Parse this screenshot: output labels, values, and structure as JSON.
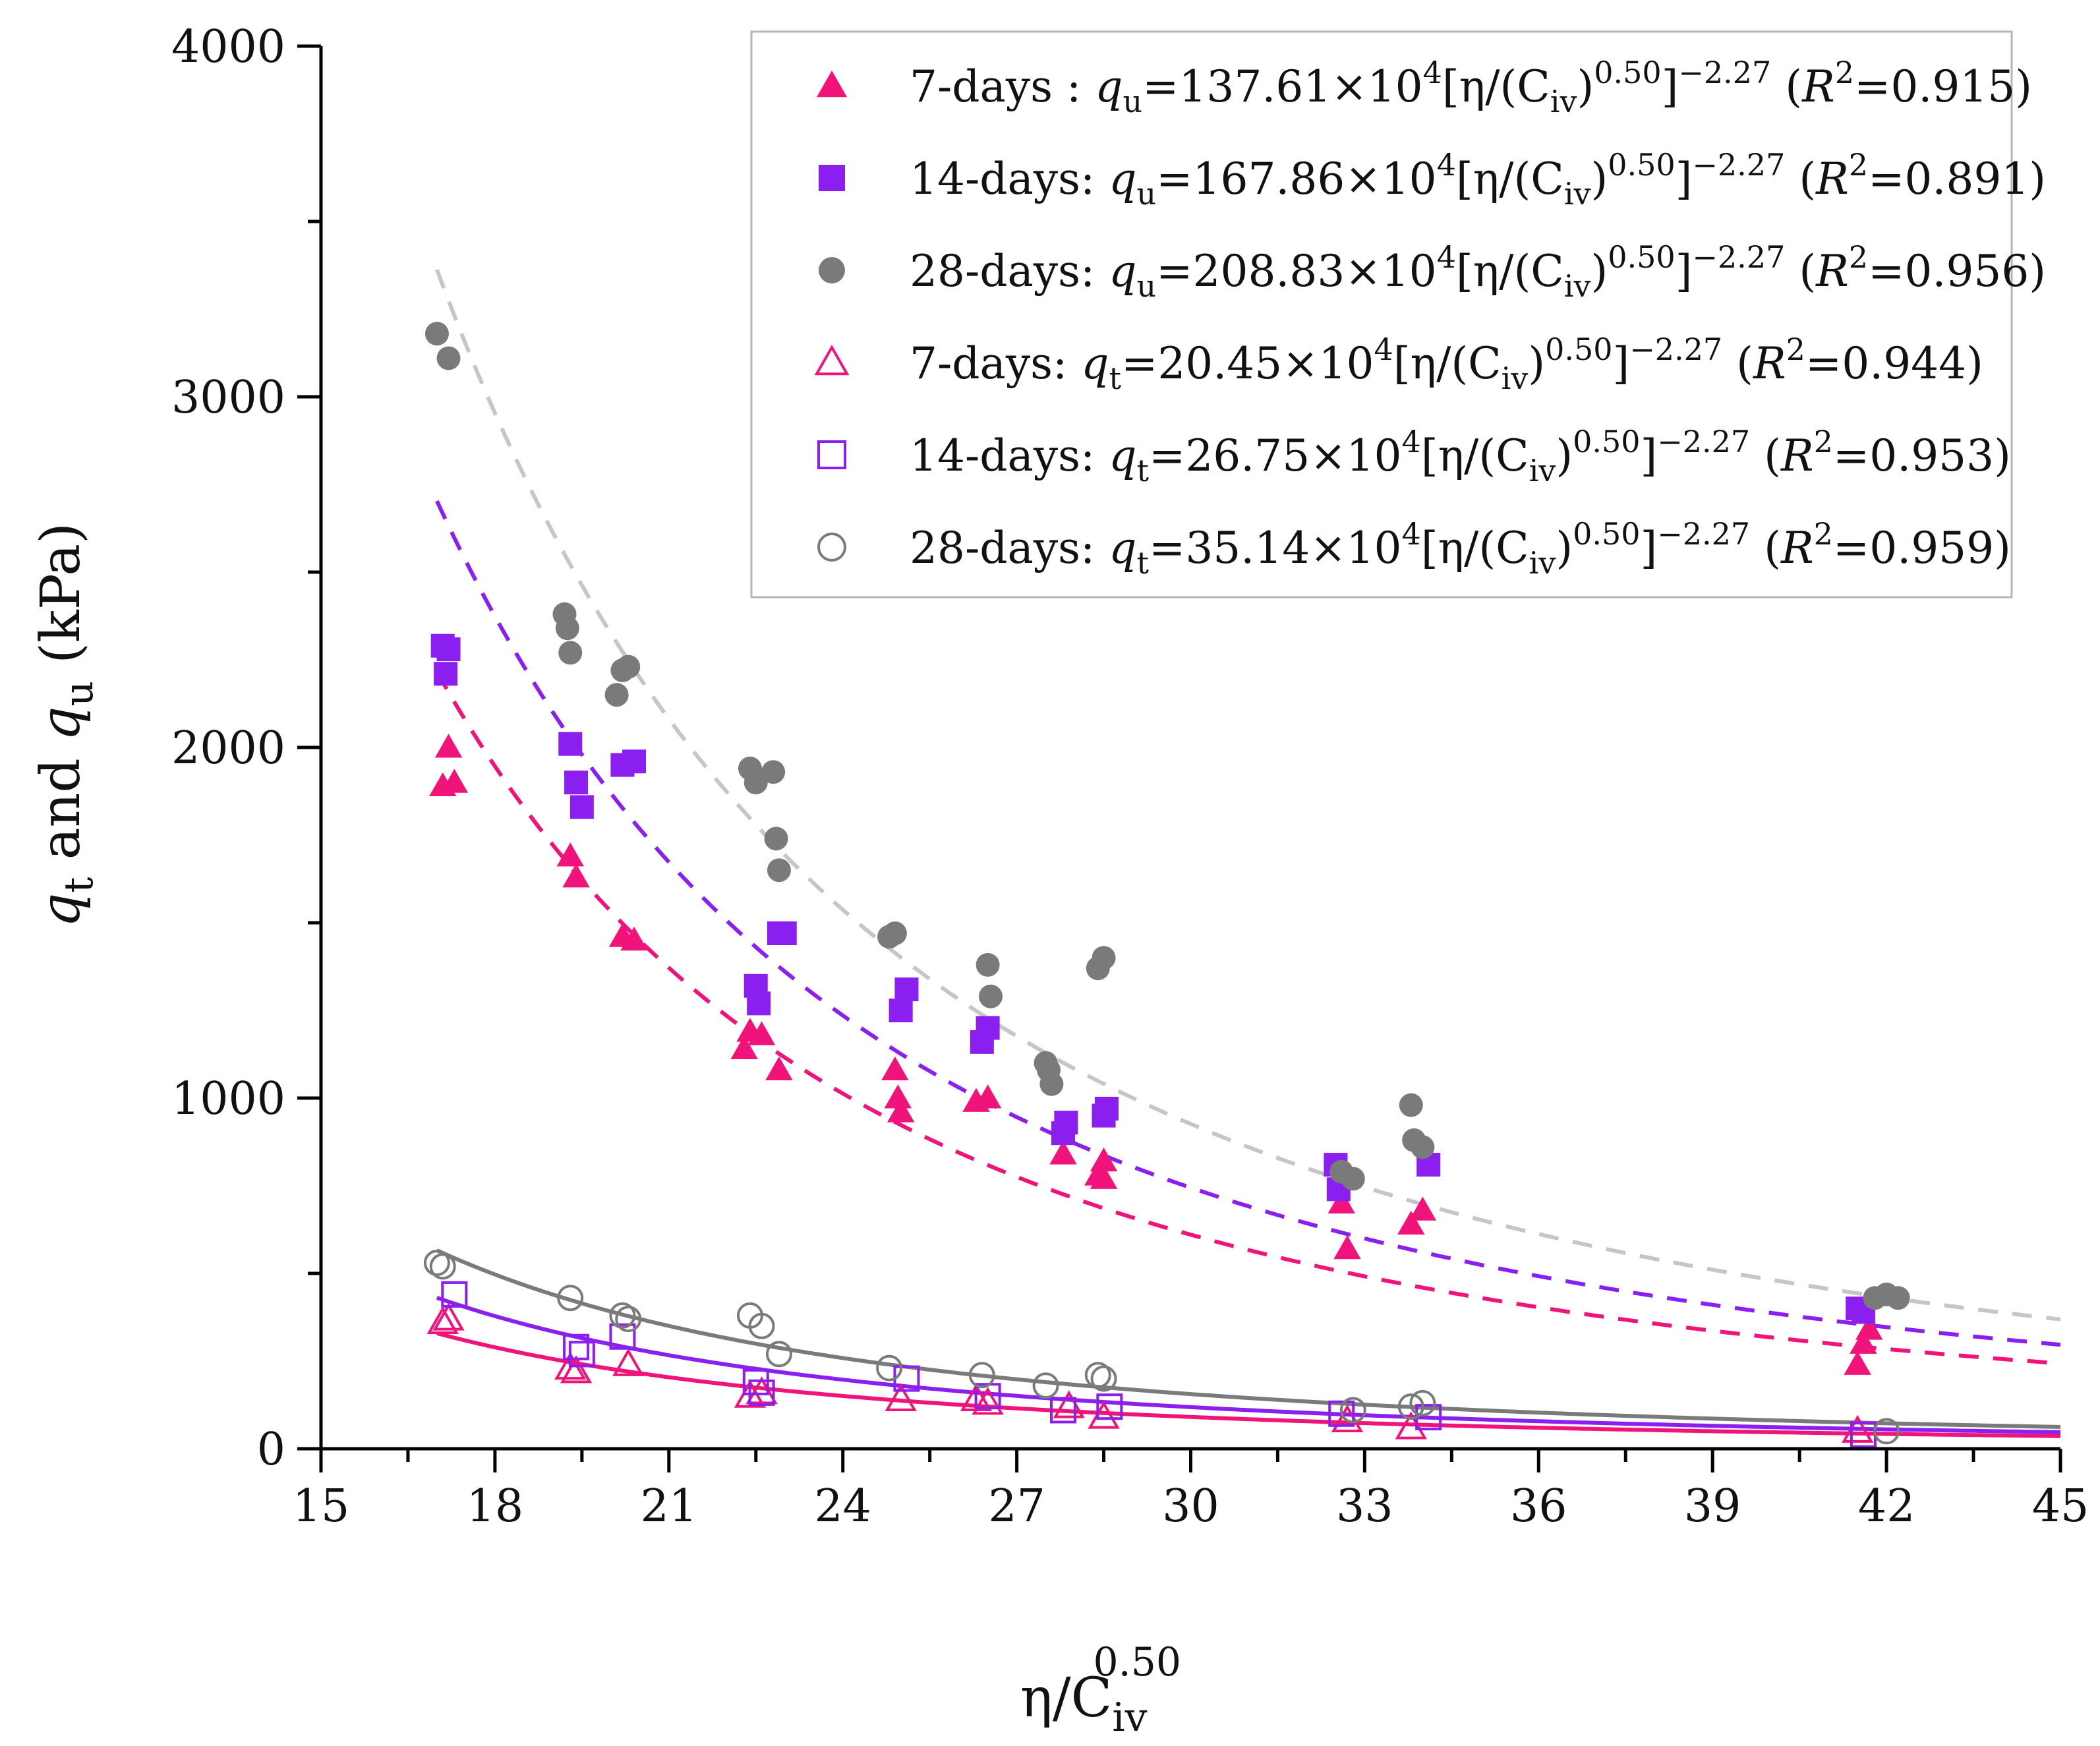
{
  "chart_data": {
    "type": "scatter",
    "xlabel": {
      "main": "η/C",
      "sub": "iv",
      "sup": "0.50"
    },
    "ylabel": {
      "q1": "q",
      "q1_sub": "t",
      "and": " and ",
      "q2": "q",
      "q2_sub": "u",
      "unit": " (kPa)"
    },
    "xlim": [
      15,
      45
    ],
    "ylim": [
      0,
      4000
    ],
    "x_ticks": [
      "15",
      "18",
      "21",
      "24",
      "27",
      "30",
      "33",
      "36",
      "39",
      "42",
      "45"
    ],
    "y_ticks": [
      "0",
      "1000",
      "2000",
      "3000",
      "4000"
    ],
    "legend_position": "top-right",
    "colors": {
      "pink": "#f0147a",
      "purple": "#8a1ff0",
      "gray": "#8c8c8c",
      "lightgray": "#c6c6c6",
      "darkgray": "#7a7a7a"
    },
    "series": [
      {
        "name": "7-days qu",
        "marker": "triangle",
        "filled": true,
        "color": "#f0147a",
        "legend": {
          "label": "7-days : ",
          "var": "q",
          "var_sub": "u",
          "eq": "=137.61×10",
          "exp": "4",
          "mid1": "[η/(C",
          "csub": "iv",
          "mid2": ")",
          "pow": "0.50",
          "mid3": "]",
          "pow2": "−2.27",
          "r2pre": " (",
          "R": "R",
          "Rsup": "2",
          "r2": "=0.915)"
        },
        "fit": {
          "coef": 1376100,
          "style": "dashed",
          "color": "#f0147a"
        },
        "points": [
          [
            17.1,
            1890
          ],
          [
            17.2,
            2000
          ],
          [
            17.3,
            1900
          ],
          [
            19.3,
            1690
          ],
          [
            19.4,
            1630
          ],
          [
            20.2,
            1460
          ],
          [
            20.4,
            1450
          ],
          [
            22.3,
            1140
          ],
          [
            22.4,
            1190
          ],
          [
            22.6,
            1180
          ],
          [
            22.9,
            1080
          ],
          [
            24.9,
            1080
          ],
          [
            24.95,
            1000
          ],
          [
            25.0,
            960
          ],
          [
            26.3,
            990
          ],
          [
            26.5,
            1000
          ],
          [
            27.8,
            840
          ],
          [
            28.4,
            780
          ],
          [
            28.5,
            820
          ],
          [
            28.5,
            770
          ],
          [
            32.6,
            700
          ],
          [
            32.7,
            570
          ],
          [
            33.8,
            640
          ],
          [
            34.0,
            680
          ],
          [
            41.5,
            240
          ],
          [
            41.6,
            300
          ],
          [
            41.7,
            340
          ]
        ]
      },
      {
        "name": "14-days qu",
        "marker": "square",
        "filled": true,
        "color": "#8a1ff0",
        "legend": {
          "label": "14-days: ",
          "var": "q",
          "var_sub": "u",
          "eq": "=167.86×10",
          "exp": "4",
          "mid1": "[η/(C",
          "csub": "iv",
          "mid2": ")",
          "pow": "0.50",
          "mid3": "]",
          "pow2": "−2.27",
          "r2pre": " (",
          "R": "R",
          "Rsup": "2",
          "r2": "=0.891)"
        },
        "fit": {
          "coef": 1678600,
          "style": "dashed",
          "color": "#8a1ff0"
        },
        "points": [
          [
            17.1,
            2290
          ],
          [
            17.15,
            2210
          ],
          [
            17.2,
            2280
          ],
          [
            19.3,
            2010
          ],
          [
            19.4,
            1900
          ],
          [
            19.5,
            1830
          ],
          [
            20.2,
            1950
          ],
          [
            20.4,
            1960
          ],
          [
            22.5,
            1320
          ],
          [
            22.55,
            1270
          ],
          [
            22.9,
            1470
          ],
          [
            23.0,
            1470
          ],
          [
            25.0,
            1250
          ],
          [
            25.1,
            1310
          ],
          [
            26.4,
            1160
          ],
          [
            26.5,
            1200
          ],
          [
            27.8,
            900
          ],
          [
            27.85,
            930
          ],
          [
            28.5,
            950
          ],
          [
            28.55,
            970
          ],
          [
            32.5,
            810
          ],
          [
            32.55,
            740
          ],
          [
            34.1,
            810
          ],
          [
            41.5,
            400
          ],
          [
            41.6,
            390
          ]
        ]
      },
      {
        "name": "28-days qu",
        "marker": "circle",
        "filled": true,
        "color": "#7a7a7a",
        "legend": {
          "label": "28-days: ",
          "var": "q",
          "var_sub": "u",
          "eq": "=208.83×10",
          "exp": "4",
          "mid1": "[η/(C",
          "csub": "iv",
          "mid2": ")",
          "pow": "0.50",
          "mid3": "]",
          "pow2": "−2.27",
          "r2pre": " (",
          "R": "R",
          "Rsup": "2",
          "r2": "=0.956)"
        },
        "fit": {
          "coef": 2088300,
          "style": "dashed",
          "color": "#c6c6c6"
        },
        "points": [
          [
            17.0,
            3180
          ],
          [
            17.2,
            3110
          ],
          [
            19.2,
            2380
          ],
          [
            19.25,
            2340
          ],
          [
            19.3,
            2270
          ],
          [
            20.1,
            2150
          ],
          [
            20.2,
            2220
          ],
          [
            20.3,
            2230
          ],
          [
            22.4,
            1940
          ],
          [
            22.5,
            1900
          ],
          [
            22.8,
            1930
          ],
          [
            22.85,
            1740
          ],
          [
            22.9,
            1650
          ],
          [
            24.8,
            1460
          ],
          [
            24.9,
            1470
          ],
          [
            26.5,
            1380
          ],
          [
            26.55,
            1290
          ],
          [
            27.5,
            1100
          ],
          [
            27.55,
            1080
          ],
          [
            27.6,
            1040
          ],
          [
            28.4,
            1370
          ],
          [
            28.5,
            1400
          ],
          [
            32.6,
            790
          ],
          [
            32.8,
            770
          ],
          [
            33.8,
            980
          ],
          [
            33.85,
            880
          ],
          [
            34.0,
            860
          ],
          [
            41.8,
            430
          ],
          [
            42.0,
            440
          ],
          [
            42.2,
            430
          ]
        ]
      },
      {
        "name": "7-days qt",
        "marker": "triangle",
        "filled": false,
        "color": "#f0147a",
        "legend": {
          "label": "7-days: ",
          "var": "q",
          "var_sub": "t",
          "eq": "=20.45×10",
          "exp": "4",
          "mid1": "[η/(C",
          "csub": "iv",
          "mid2": ")",
          "pow": "0.50",
          "mid3": "]",
          "pow2": "−2.27",
          "r2pre": " (",
          "R": "R",
          "Rsup": "2",
          "r2": "=0.944)"
        },
        "fit": {
          "coef": 204500,
          "style": "solid",
          "color": "#f0147a"
        },
        "points": [
          [
            17.1,
            360
          ],
          [
            17.2,
            370
          ],
          [
            19.3,
            230
          ],
          [
            19.4,
            220
          ],
          [
            20.3,
            240
          ],
          [
            22.4,
            150
          ],
          [
            22.6,
            160
          ],
          [
            25.0,
            140
          ],
          [
            26.3,
            140
          ],
          [
            26.5,
            130
          ],
          [
            27.9,
            120
          ],
          [
            28.5,
            90
          ],
          [
            32.7,
            80
          ],
          [
            33.8,
            60
          ],
          [
            41.5,
            50
          ]
        ]
      },
      {
        "name": "14-days qt",
        "marker": "square",
        "filled": false,
        "color": "#8a1ff0",
        "legend": {
          "label": "14-days: ",
          "var": "q",
          "var_sub": "t",
          "eq": "=26.75×10",
          "exp": "4",
          "mid1": "[η/(C",
          "csub": "iv",
          "mid2": ")",
          "pow": "0.50",
          "mid3": "]",
          "pow2": "−2.27",
          "r2pre": " (",
          "R": "R",
          "Rsup": "2",
          "r2": "=0.953)"
        },
        "fit": {
          "coef": 267500,
          "style": "solid",
          "color": "#8a1ff0"
        },
        "points": [
          [
            17.3,
            440
          ],
          [
            19.4,
            290
          ],
          [
            19.5,
            270
          ],
          [
            20.2,
            320
          ],
          [
            22.5,
            190
          ],
          [
            22.6,
            160
          ],
          [
            25.1,
            200
          ],
          [
            26.5,
            150
          ],
          [
            27.8,
            110
          ],
          [
            28.6,
            120
          ],
          [
            32.6,
            100
          ],
          [
            34.1,
            90
          ],
          [
            41.6,
            40
          ]
        ]
      },
      {
        "name": "28-days qt",
        "marker": "circle",
        "filled": false,
        "color": "#7a7a7a",
        "legend": {
          "label": "28-days: ",
          "var": "q",
          "var_sub": "t",
          "eq": "=35.14×10",
          "exp": "4",
          "mid1": "[η/(C",
          "csub": "iv",
          "mid2": ")",
          "pow": "0.50",
          "mid3": "]",
          "pow2": "−2.27",
          "r2pre": " (",
          "R": "R",
          "Rsup": "2",
          "r2": "=0.959)"
        },
        "fit": {
          "coef": 351400,
          "style": "solid",
          "color": "#7a7a7a"
        },
        "points": [
          [
            17.0,
            530
          ],
          [
            17.1,
            520
          ],
          [
            19.3,
            430
          ],
          [
            20.2,
            380
          ],
          [
            20.3,
            370
          ],
          [
            22.4,
            380
          ],
          [
            22.6,
            350
          ],
          [
            22.9,
            270
          ],
          [
            24.8,
            230
          ],
          [
            26.4,
            210
          ],
          [
            27.5,
            180
          ],
          [
            28.4,
            210
          ],
          [
            28.5,
            200
          ],
          [
            32.8,
            110
          ],
          [
            33.8,
            120
          ],
          [
            34.0,
            130
          ],
          [
            42.0,
            50
          ]
        ]
      }
    ]
  }
}
